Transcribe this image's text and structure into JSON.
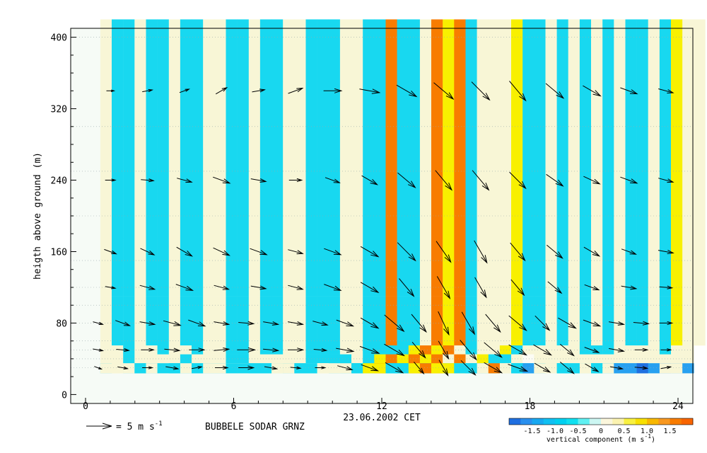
{
  "chart_data": {
    "type": "heatmap",
    "overlay": "wind vector arrows",
    "xlabel": "23.06.2002 CET",
    "ylabel": "heigth above ground (m)",
    "x_ticks": [
      "0",
      "6",
      "12",
      "18",
      "24"
    ],
    "y_ticks": [
      "0",
      "80",
      "160",
      "240",
      "320",
      "400"
    ],
    "xlim": [
      -0.6,
      24.6
    ],
    "ylim": [
      -10,
      410
    ],
    "station_label": "BUBBELE SODAR GRNZ",
    "reference_arrow_label": "= 5 m s",
    "reference_arrow_exp": "-1",
    "colorbar": {
      "title": "vertical component",
      "unit": "(m s",
      "unit_exp": "-1",
      "ticks": [
        "-1.5",
        "-1.0",
        "-0.5",
        "0",
        "0.5",
        "1.0",
        "1.5"
      ],
      "levels": [
        -2.0,
        -1.75,
        -1.5,
        -1.25,
        -1.0,
        -0.75,
        -0.5,
        -0.25,
        0,
        0.25,
        0.5,
        0.75,
        1.0,
        1.25,
        1.5,
        1.75,
        2.0
      ],
      "colors": [
        "#1f6fe0",
        "#2a90ee",
        "#18a8f0",
        "#10c0f2",
        "#00d0f0",
        "#10e0f0",
        "#60f0f2",
        "#ccf6f2",
        "#fbf6dc",
        "#fbf2b0",
        "#f8f040",
        "#f8e000",
        "#f8b800",
        "#f89820",
        "#f87c00",
        "#f86400"
      ]
    },
    "height_levels": [
      30,
      40,
      50,
      60,
      80,
      100,
      120,
      150,
      200,
      250,
      300,
      400
    ],
    "palette": {
      "c": "#18d8f0",
      "l": "#f8f6d6",
      "w": "#fcfcf4",
      "y": "#f8f000",
      "o": "#f87c00",
      "b": "#28a0f0",
      "d": "#2070e0"
    },
    "grid_rows": [
      "lcclcclccllcclccllcccllccoccloyoclllycclclclclcclcyll",
      "lcclcclccllcclccllcccllccoccloyoclllycclclclclcclcyll",
      "lcclcclccllcclccllcccllccoccloyoclllycclclclclcclcyll",
      "lcclcclccllcclccllcccllccoccloyoclllycclclclclcclcyll",
      "lcclcclccllcclccllcccllccoccloyoclllycclclclclcclcyll",
      "lcclcclccllcclccllcccllccoccloyoclllycclclclclcclcyll",
      "lcclcclccllcclccllcccllccoccloyoclllycclclclclcclcyll",
      "lcclcclccllcclccllcccllccoccloyoclllycclclclclcclcyll",
      "lcclcclccllcclccllcccllccoccloyoclllycclclclclcclcyll",
      "llcllcllcllcclccllcccllccccyoyolcllyclllllcccllllcll",
      "llcllllclllcclllllcccclcyoyoyololycclwllllllllllllll",
      "lllllllcllcclllcllllcccyycoccoyllcllcllcclcccclcclll",
      "lllllccclllccllclllllcccocooyolccyccccclclccccllcbll",
      "clccclcccccllcclccclccccoccococyccclccclcclcccbblbbl",
      "lllclcclcllccccllcclllcyyccyoyycclolcbllcclclbbdbllb"
    ],
    "wind_vectors": [
      {
        "height": 30,
        "t": [
          0.5,
          1.5,
          2.5,
          3.5,
          4.5,
          5.5,
          6.5,
          7.5,
          8.5,
          9.5,
          10.5,
          11.5,
          12.5,
          13.5,
          14.5,
          15.5,
          16.5,
          17.5,
          18.5,
          19.5,
          20.5,
          21.5,
          22.5,
          23.5
        ],
        "spd": [
          1.5,
          2,
          2,
          2.5,
          2,
          2.5,
          3,
          2.5,
          2,
          2,
          3,
          3.5,
          4,
          3,
          3.5,
          4,
          4,
          4,
          3.5,
          3.5,
          3,
          2.5,
          2.5,
          2
        ],
        "dir": [
          290,
          280,
          270,
          280,
          260,
          270,
          270,
          280,
          275,
          270,
          285,
          290,
          300,
          320,
          330,
          315,
          300,
          290,
          300,
          310,
          300,
          280,
          275,
          260
        ]
      },
      {
        "height": 50,
        "t": [
          0.5,
          1.5,
          2.5,
          3.5,
          4.5,
          5.5,
          6.5,
          7.5,
          8.5,
          9.5,
          10.5,
          11.5,
          12.5,
          13.5,
          14.5,
          15.5,
          16.5,
          17.5,
          18.5,
          19.5,
          20.5,
          21.5,
          22.5,
          23.5
        ],
        "spd": [
          2,
          2.5,
          2.5,
          3,
          3,
          3,
          3.5,
          3,
          3,
          2.5,
          3.5,
          4,
          4.5,
          4,
          4,
          5,
          4.5,
          4,
          4,
          3.5,
          3,
          3,
          2.5,
          2
        ],
        "dir": [
          280,
          275,
          270,
          275,
          270,
          265,
          270,
          275,
          270,
          275,
          280,
          290,
          300,
          320,
          330,
          320,
          310,
          300,
          300,
          310,
          290,
          280,
          270,
          270
        ]
      },
      {
        "height": 80,
        "t": [
          0.5,
          1.5,
          2.5,
          3.5,
          4.5,
          5.5,
          6.5,
          7.5,
          8.5,
          9.5,
          10.5,
          11.5,
          12.5,
          13.5,
          14.5,
          15.5,
          16.5,
          17.5,
          18.5,
          19.5,
          20.5,
          21.5,
          22.5,
          23.5
        ],
        "spd": [
          2,
          3,
          3,
          3.5,
          3.5,
          3,
          3,
          3,
          3,
          3,
          3.5,
          4,
          5,
          4.5,
          5,
          5,
          4.5,
          4.5,
          4,
          4,
          3.5,
          3,
          3,
          2.5
        ],
        "dir": [
          285,
          290,
          280,
          285,
          290,
          280,
          275,
          280,
          280,
          285,
          290,
          300,
          310,
          320,
          335,
          330,
          320,
          310,
          315,
          300,
          290,
          280,
          275,
          270
        ]
      },
      {
        "height": 120,
        "t": [
          1,
          2.5,
          4,
          5.5,
          7,
          8.5,
          10,
          11.5,
          13,
          14.5,
          16,
          17.5,
          19,
          20.5,
          22,
          23.5
        ],
        "spd": [
          2,
          3,
          3.5,
          3,
          3,
          3,
          3.5,
          4,
          4.5,
          5,
          4.5,
          4,
          3.5,
          3,
          3,
          2.5
        ],
        "dir": [
          280,
          285,
          290,
          285,
          280,
          285,
          290,
          300,
          320,
          330,
          330,
          320,
          310,
          290,
          280,
          275
        ]
      },
      {
        "height": 160,
        "t": [
          1,
          2.5,
          4,
          5.5,
          7,
          8.5,
          10,
          11.5,
          13,
          14.5,
          16,
          17.5,
          19,
          20.5,
          22,
          23.5
        ],
        "spd": [
          2.5,
          3,
          3.5,
          3.5,
          3.5,
          3,
          3.5,
          4,
          5,
          5,
          5,
          4.5,
          4,
          3.5,
          3,
          3
        ],
        "dir": [
          290,
          295,
          300,
          295,
          290,
          285,
          290,
          300,
          315,
          325,
          330,
          320,
          310,
          300,
          290,
          280
        ]
      },
      {
        "height": 240,
        "t": [
          1,
          2.5,
          4,
          5.5,
          7,
          8.5,
          10,
          11.5,
          13,
          14.5,
          16,
          17.5,
          19,
          20.5,
          22,
          23.5
        ],
        "spd": [
          2,
          2.5,
          3,
          3.5,
          3,
          2.5,
          3,
          3.5,
          4.5,
          5,
          5,
          4.5,
          4,
          3.5,
          3.5,
          3
        ],
        "dir": [
          270,
          275,
          285,
          290,
          280,
          270,
          290,
          300,
          310,
          320,
          320,
          315,
          305,
          295,
          290,
          285
        ]
      },
      {
        "height": 340,
        "t": [
          1,
          2.5,
          4,
          5.5,
          7,
          8.5,
          10,
          11.5,
          13,
          14.5,
          16,
          17.5,
          19,
          20.5,
          22,
          23.5
        ],
        "spd": [
          1.5,
          2,
          2,
          2.5,
          2.5,
          3,
          3.5,
          4,
          4.5,
          5,
          5,
          5,
          4.5,
          4,
          3.5,
          3
        ],
        "dir": [
          270,
          260,
          250,
          240,
          260,
          250,
          270,
          280,
          300,
          310,
          315,
          320,
          310,
          300,
          290,
          285
        ]
      }
    ]
  }
}
